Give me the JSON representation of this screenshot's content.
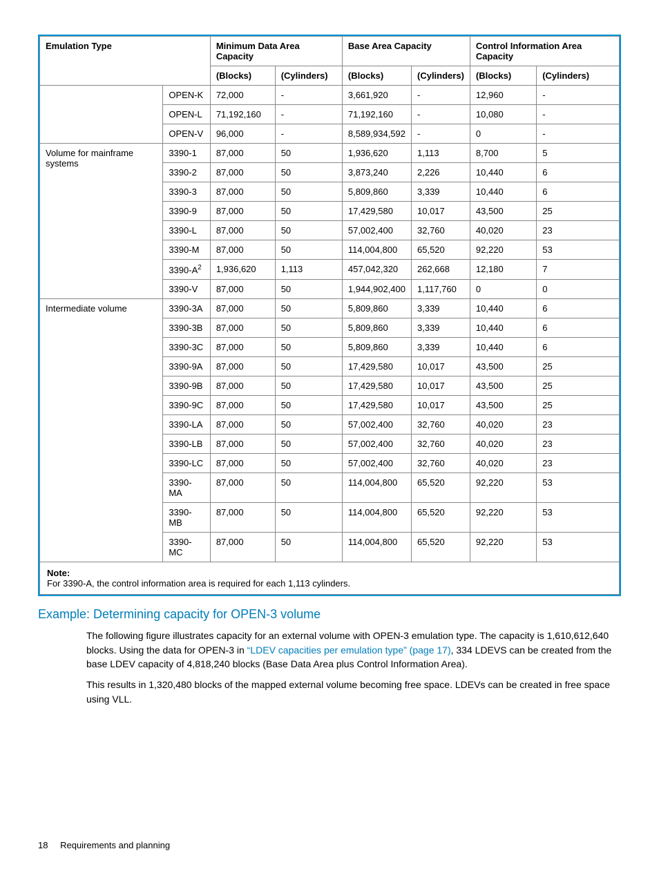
{
  "table": {
    "headers": {
      "emulation_type": "Emulation Type",
      "min_data": "Minimum Data Area Capacity",
      "base_area": "Base Area Capacity",
      "control_info": "Control Information Area Capacity",
      "blocks": "(Blocks)",
      "cylinders": "(Cylinders)"
    },
    "group1_rows": [
      {
        "model": "OPEN-K",
        "min_blocks": "72,000",
        "min_cyl": "-",
        "base_blocks": "3,661,920",
        "base_cyl": "-",
        "ctrl_blocks": "12,960",
        "ctrl_cyl": "-"
      },
      {
        "model": "OPEN-L",
        "min_blocks": "71,192,160",
        "min_cyl": "-",
        "base_blocks": "71,192,160",
        "base_cyl": "-",
        "ctrl_blocks": "10,080",
        "ctrl_cyl": "-"
      },
      {
        "model": "OPEN-V",
        "min_blocks": "96,000",
        "min_cyl": "-",
        "base_blocks": "8,589,934,592",
        "base_cyl": "-",
        "ctrl_blocks": "0",
        "ctrl_cyl": "-"
      }
    ],
    "group2_label": "Volume for mainframe systems",
    "group2_rows": [
      {
        "model": "3390-1",
        "min_blocks": "87,000",
        "min_cyl": "50",
        "base_blocks": "1,936,620",
        "base_cyl": "1,113",
        "ctrl_blocks": "8,700",
        "ctrl_cyl": "5"
      },
      {
        "model": "3390-2",
        "min_blocks": "87,000",
        "min_cyl": "50",
        "base_blocks": "3,873,240",
        "base_cyl": "2,226",
        "ctrl_blocks": "10,440",
        "ctrl_cyl": "6"
      },
      {
        "model": "3390-3",
        "min_blocks": "87,000",
        "min_cyl": "50",
        "base_blocks": "5,809,860",
        "base_cyl": "3,339",
        "ctrl_blocks": "10,440",
        "ctrl_cyl": "6"
      },
      {
        "model": "3390-9",
        "min_blocks": "87,000",
        "min_cyl": "50",
        "base_blocks": "17,429,580",
        "base_cyl": "10,017",
        "ctrl_blocks": "43,500",
        "ctrl_cyl": "25"
      },
      {
        "model": "3390-L",
        "min_blocks": "87,000",
        "min_cyl": "50",
        "base_blocks": "57,002,400",
        "base_cyl": "32,760",
        "ctrl_blocks": "40,020",
        "ctrl_cyl": "23"
      },
      {
        "model": "3390-M",
        "min_blocks": "87,000",
        "min_cyl": "50",
        "base_blocks": "114,004,800",
        "base_cyl": "65,520",
        "ctrl_blocks": "92,220",
        "ctrl_cyl": "53"
      },
      {
        "model": "3390-A",
        "sup": "2",
        "min_blocks": "1,936,620",
        "min_cyl": "1,113",
        "base_blocks": "457,042,320",
        "base_cyl": "262,668",
        "ctrl_blocks": "12,180",
        "ctrl_cyl": "7"
      },
      {
        "model": "3390-V",
        "min_blocks": "87,000",
        "min_cyl": "50",
        "base_blocks": "1,944,902,400",
        "base_cyl": "1,117,760",
        "ctrl_blocks": "0",
        "ctrl_cyl": "0"
      }
    ],
    "group3_label": "Intermediate volume",
    "group3_rows": [
      {
        "model": "3390-3A",
        "min_blocks": "87,000",
        "min_cyl": "50",
        "base_blocks": "5,809,860",
        "base_cyl": "3,339",
        "ctrl_blocks": "10,440",
        "ctrl_cyl": "6"
      },
      {
        "model": "3390-3B",
        "min_blocks": "87,000",
        "min_cyl": "50",
        "base_blocks": "5,809,860",
        "base_cyl": "3,339",
        "ctrl_blocks": "10,440",
        "ctrl_cyl": "6"
      },
      {
        "model": "3390-3C",
        "min_blocks": "87,000",
        "min_cyl": "50",
        "base_blocks": "5,809,860",
        "base_cyl": "3,339",
        "ctrl_blocks": "10,440",
        "ctrl_cyl": "6"
      },
      {
        "model": "3390-9A",
        "min_blocks": "87,000",
        "min_cyl": "50",
        "base_blocks": "17,429,580",
        "base_cyl": "10,017",
        "ctrl_blocks": "43,500",
        "ctrl_cyl": "25"
      },
      {
        "model": "3390-9B",
        "min_blocks": "87,000",
        "min_cyl": "50",
        "base_blocks": "17,429,580",
        "base_cyl": "10,017",
        "ctrl_blocks": "43,500",
        "ctrl_cyl": "25"
      },
      {
        "model": "3390-9C",
        "min_blocks": "87,000",
        "min_cyl": "50",
        "base_blocks": "17,429,580",
        "base_cyl": "10,017",
        "ctrl_blocks": "43,500",
        "ctrl_cyl": "25"
      },
      {
        "model": "3390-LA",
        "min_blocks": "87,000",
        "min_cyl": "50",
        "base_blocks": "57,002,400",
        "base_cyl": "32,760",
        "ctrl_blocks": "40,020",
        "ctrl_cyl": "23"
      },
      {
        "model": "3390-LB",
        "min_blocks": "87,000",
        "min_cyl": "50",
        "base_blocks": "57,002,400",
        "base_cyl": "32,760",
        "ctrl_blocks": "40,020",
        "ctrl_cyl": "23"
      },
      {
        "model": "3390-LC",
        "min_blocks": "87,000",
        "min_cyl": "50",
        "base_blocks": "57,002,400",
        "base_cyl": "32,760",
        "ctrl_blocks": "40,020",
        "ctrl_cyl": "23"
      },
      {
        "model": "3390-MA",
        "min_blocks": "87,000",
        "min_cyl": "50",
        "base_blocks": "114,004,800",
        "base_cyl": "65,520",
        "ctrl_blocks": "92,220",
        "ctrl_cyl": "53"
      },
      {
        "model": "3390-MB",
        "min_blocks": "87,000",
        "min_cyl": "50",
        "base_blocks": "114,004,800",
        "base_cyl": "65,520",
        "ctrl_blocks": "92,220",
        "ctrl_cyl": "53"
      },
      {
        "model": "3390-MC",
        "min_blocks": "87,000",
        "min_cyl": "50",
        "base_blocks": "114,004,800",
        "base_cyl": "65,520",
        "ctrl_blocks": "92,220",
        "ctrl_cyl": "53"
      }
    ],
    "note_label": "Note:",
    "note_text": "For 3390-A, the control information area is required for each 1,113 cylinders."
  },
  "section_heading": "Example: Determining capacity for OPEN-3 volume",
  "para1_pre": "The following figure illustrates capacity for an external volume with OPEN-3 emulation type. The capacity is 1,610,612,640 blocks. Using the data for OPEN-3 in ",
  "para1_link": "“LDEV capacities per emulation type” (page 17)",
  "para1_post": ", 334 LDEVS can be created from the base LDEV capacity of 4,818,240 blocks (Base Data Area plus Control Information Area).",
  "para2": "This results in 1,320,480 blocks of the mapped external volume becoming free space. LDEVs can be created in free space using VLL.",
  "footer": {
    "page": "18",
    "title": "Requirements and planning"
  }
}
